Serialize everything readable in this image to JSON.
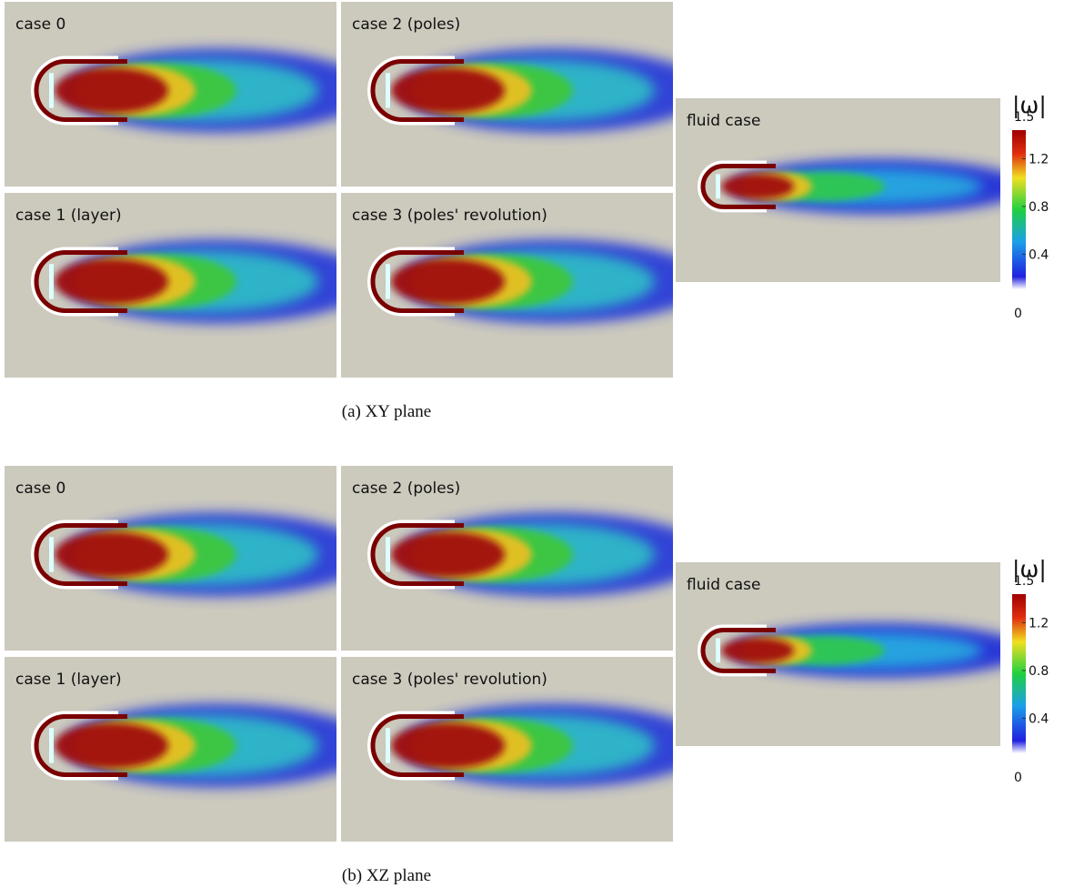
{
  "subfigures": [
    {
      "panels": [
        "case 0",
        "case 2 (poles)",
        "case 1 (layer)",
        "case 3 (poles' revolution)",
        "fluid case"
      ],
      "colorbar": {
        "title": "|ω|",
        "range": [
          0,
          1.5
        ],
        "ticks": [
          1.5,
          1.2,
          0.8,
          0.4,
          0
        ]
      },
      "caption": "(a) XY plane"
    },
    {
      "panels": [
        "case 0",
        "case 2 (poles)",
        "case 1 (layer)",
        "case 3 (poles' revolution)",
        "fluid case"
      ],
      "colorbar": {
        "title": "|ω|",
        "range": [
          0,
          1.5
        ],
        "ticks": [
          1.5,
          1.2,
          0.8,
          0.4,
          0
        ]
      },
      "caption": "(b) XZ plane"
    }
  ]
}
